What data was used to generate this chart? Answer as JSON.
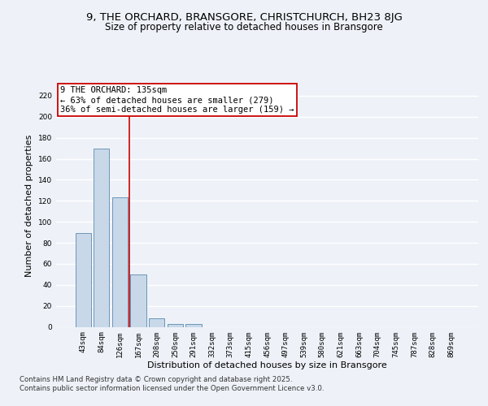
{
  "title_line1": "9, THE ORCHARD, BRANSGORE, CHRISTCHURCH, BH23 8JG",
  "title_line2": "Size of property relative to detached houses in Bransgore",
  "xlabel": "Distribution of detached houses by size in Bransgore",
  "ylabel": "Number of detached properties",
  "categories": [
    "43sqm",
    "84sqm",
    "126sqm",
    "167sqm",
    "208sqm",
    "250sqm",
    "291sqm",
    "332sqm",
    "373sqm",
    "415sqm",
    "456sqm",
    "497sqm",
    "539sqm",
    "580sqm",
    "621sqm",
    "663sqm",
    "704sqm",
    "745sqm",
    "787sqm",
    "828sqm",
    "869sqm"
  ],
  "values": [
    89,
    170,
    123,
    50,
    8,
    3,
    3,
    0,
    0,
    0,
    0,
    0,
    0,
    0,
    0,
    0,
    0,
    0,
    0,
    0,
    0
  ],
  "bar_color": "#c8d8e8",
  "bar_edge_color": "#5a8ab0",
  "red_line_x": 2.5,
  "annotation_text": "9 THE ORCHARD: 135sqm\n← 63% of detached houses are smaller (279)\n36% of semi-detached houses are larger (159) →",
  "annotation_box_color": "#ffffff",
  "annotation_edge_color": "#cc0000",
  "ylim": [
    0,
    230
  ],
  "yticks": [
    0,
    20,
    40,
    60,
    80,
    100,
    120,
    140,
    160,
    180,
    200,
    220
  ],
  "background_color": "#eef2f8",
  "grid_color": "#ffffff",
  "footer_line1": "Contains HM Land Registry data © Crown copyright and database right 2025.",
  "footer_line2": "Contains public sector information licensed under the Open Government Licence v3.0.",
  "title_fontsize": 9.5,
  "subtitle_fontsize": 8.5,
  "axis_label_fontsize": 8,
  "tick_fontsize": 6.5,
  "annotation_fontsize": 7.5,
  "footer_fontsize": 6.2,
  "fig_bg_color": "#eef2f8"
}
